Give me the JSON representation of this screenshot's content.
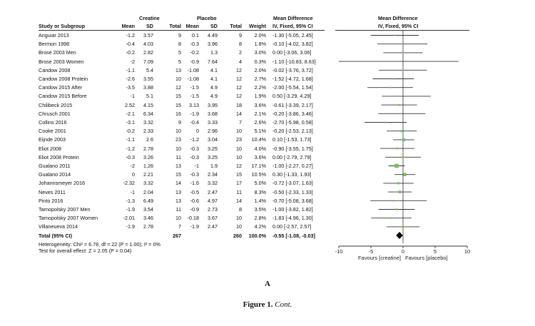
{
  "headers": {
    "group_creatine": "Creatine",
    "group_placebo": "Placebo",
    "group_md": "Mean Difference",
    "group_plot": "Mean Difference",
    "study": "Study or Subgroup",
    "mean": "Mean",
    "sd": "SD",
    "total": "Total",
    "weight": "Weight",
    "method": "IV, Fixed, 95% CI",
    "plot_method": "IV, Fixed, 95% CI"
  },
  "rows": [
    {
      "study": "Anguiar 2013",
      "c_mean": "-1.2",
      "c_sd": "3.57",
      "c_n": "9",
      "p_mean": "0.1",
      "p_sd": "4.49",
      "p_n": "9",
      "weight": "2.0%",
      "ci_text": "-1.30 [-5.05, 2.45]"
    },
    {
      "study": "Bermon 1998",
      "c_mean": "-0.4",
      "c_sd": "4.03",
      "c_n": "8",
      "p_mean": "-0.3",
      "p_sd": "3.96",
      "p_n": "8",
      "weight": "1.8%",
      "ci_text": "-0.10 [-4.02, 3.82]"
    },
    {
      "study": "Brose 2003 Men",
      "c_mean": "-0.2",
      "c_sd": "2.82",
      "c_n": "5",
      "p_mean": "-0.2",
      "p_sd": "1.3",
      "p_n": "2",
      "weight": "3.0%",
      "ci_text": "0.00 [-3.06, 3.06]"
    },
    {
      "study": "Brose 2003 Women",
      "c_mean": "-2",
      "c_sd": "7.09",
      "c_n": "5",
      "p_mean": "-0.9",
      "p_sd": "7.64",
      "p_n": "4",
      "weight": "0.3%",
      "ci_text": "-1.10 [-10.83, 8.63]"
    },
    {
      "study": "Candow 2008",
      "c_mean": "-1.1",
      "c_sd": "5.4",
      "c_n": "13",
      "p_mean": "-1.08",
      "p_sd": "4.1",
      "p_n": "12",
      "weight": "2.0%",
      "ci_text": "-0.02 [-3.76, 3.72]"
    },
    {
      "study": "Candow 2008 Protein",
      "c_mean": "-2.6",
      "c_sd": "3.55",
      "c_n": "10",
      "p_mean": "-1.08",
      "p_sd": "4.1",
      "p_n": "12",
      "weight": "2.7%",
      "ci_text": "-1.52 [-4.72, 1.68]"
    },
    {
      "study": "Candow 2015 After",
      "c_mean": "-3.5",
      "c_sd": "3.88",
      "c_n": "12",
      "p_mean": "-1.5",
      "p_sd": "4.9",
      "p_n": "12",
      "weight": "2.2%",
      "ci_text": "-2.00 [-5.54, 1.54]"
    },
    {
      "study": "Candow 2015 Before",
      "c_mean": "-1",
      "c_sd": "5.1",
      "c_n": "15",
      "p_mean": "-1.5",
      "p_sd": "4.9",
      "p_n": "12",
      "weight": "1.9%",
      "ci_text": "0.50 [-3.29, 4.29]"
    },
    {
      "study": "Chilibeck 2015",
      "c_mean": "2.52",
      "c_sd": "4.15",
      "c_n": "15",
      "p_mean": "3.13",
      "p_sd": "3.95",
      "p_n": "18",
      "weight": "3.6%",
      "ci_text": "-0.61 [-3.39, 2.17]"
    },
    {
      "study": "Chrusch 2001",
      "c_mean": "-2.1",
      "c_sd": "6.34",
      "c_n": "16",
      "p_mean": "-1.9",
      "p_sd": "3.68",
      "p_n": "14",
      "weight": "2.1%",
      "ci_text": "-0.20 [-3.86, 3.46]"
    },
    {
      "study": "Collins 2016",
      "c_mean": "-3.1",
      "c_sd": "3.32",
      "c_n": "9",
      "p_mean": "-0.4",
      "p_sd": "3.33",
      "p_n": "7",
      "weight": "2.6%",
      "ci_text": "-2.70 [-5.98, 0.58]"
    },
    {
      "study": "Cooke 2001",
      "c_mean": "-0.2",
      "c_sd": "2.33",
      "c_n": "10",
      "p_mean": "0",
      "p_sd": "2.96",
      "p_n": "10",
      "weight": "5.1%",
      "ci_text": "-0.20 [-2.53, 2.13]"
    },
    {
      "study": "Eijnde 2003",
      "c_mean": "-1.1",
      "c_sd": "2.6",
      "c_n": "23",
      "p_mean": "-1.2",
      "p_sd": "3.04",
      "p_n": "23",
      "weight": "10.4%",
      "ci_text": "0.10 [-1.53, 1.73]"
    },
    {
      "study": "Eliot 2008",
      "c_mean": "-1.2",
      "c_sd": "2.78",
      "c_n": "10",
      "p_mean": "-0.3",
      "p_sd": "3.25",
      "p_n": "10",
      "weight": "4.0%",
      "ci_text": "-0.90 [-3.55, 1.75]"
    },
    {
      "study": "Eliot 2008 Protein",
      "c_mean": "-0.3",
      "c_sd": "3.26",
      "c_n": "11",
      "p_mean": "-0.3",
      "p_sd": "3.25",
      "p_n": "10",
      "weight": "3.6%",
      "ci_text": "0.00 [-2.79, 2.79]"
    },
    {
      "study": "Gualano 2011",
      "c_mean": "-2",
      "c_sd": "1.26",
      "c_n": "13",
      "p_mean": "-1",
      "p_sd": "1.9",
      "p_n": "12",
      "weight": "17.1%",
      "ci_text": "-1.00 [-2.27, 0.27]"
    },
    {
      "study": "Gualano 2014",
      "c_mean": "0",
      "c_sd": "2.21",
      "c_n": "15",
      "p_mean": "-0.3",
      "p_sd": "2.34",
      "p_n": "15",
      "weight": "10.5%",
      "ci_text": "0.30 [-1.33, 1.93]"
    },
    {
      "study": "Johannsmeyer 2016",
      "c_mean": "-2.32",
      "c_sd": "3.32",
      "c_n": "14",
      "p_mean": "-1.6",
      "p_sd": "3.32",
      "p_n": "17",
      "weight": "5.0%",
      "ci_text": "-0.72 [-3.07, 1.63]"
    },
    {
      "study": "Neves 2011",
      "c_mean": "-1",
      "c_sd": "2.04",
      "c_n": "13",
      "p_mean": "-0.5",
      "p_sd": "2.47",
      "p_n": "11",
      "weight": "8.3%",
      "ci_text": "-0.50 [-2.33, 1.33]"
    },
    {
      "study": "Pinto 2016",
      "c_mean": "-1.3",
      "c_sd": "6.49",
      "c_n": "13",
      "p_mean": "-0.6",
      "p_sd": "4.97",
      "p_n": "14",
      "weight": "1.4%",
      "ci_text": "-0.70 [-5.08, 3.68]"
    },
    {
      "study": "Tarnopolsky 2007 Men",
      "c_mean": "-1.9",
      "c_sd": "3.54",
      "c_n": "11",
      "p_mean": "-0.9",
      "p_sd": "2.73",
      "p_n": "8",
      "weight": "3.5%",
      "ci_text": "-1.00 [-3.82, 1.82]"
    },
    {
      "study": "Tarnopolsky 2007 Women",
      "c_mean": "-2.01",
      "c_sd": "3.46",
      "c_n": "10",
      "p_mean": "-0.18",
      "p_sd": "3.67",
      "p_n": "10",
      "weight": "2.8%",
      "ci_text": "-1.83 [-4.96, 1.30]"
    },
    {
      "study": "Villaneueva 2014",
      "c_mean": "-1.9",
      "c_sd": "2.78",
      "c_n": "7",
      "p_mean": "-1.9",
      "p_sd": "2.47",
      "p_n": "10",
      "weight": "4.2%",
      "ci_text": "0.00 [-2.57, 2.57]"
    }
  ],
  "total": {
    "label": "Total (95% CI)",
    "c_n": "267",
    "p_n": "260",
    "weight": "100.0%",
    "ci_text": "-0.55 [-1.08, -0.03]"
  },
  "heterogeneity": "Heterogeneity: Chi² = 6.78, df = 22 (P = 1.00); I² = 0%",
  "overall_effect": "Test for overall effect: Z = 2.05 (P = 0.04)",
  "panel_label": "A",
  "figure_label": "Figure 1.",
  "figure_cont": "Cont.",
  "colors": {
    "marker": "#7bbf5a",
    "total_marker": "#000000",
    "line": "#333333"
  },
  "chart_data": {
    "type": "forest",
    "studies": [
      {
        "name": "Anguiar 2013",
        "md": -1.3,
        "lo": -5.05,
        "hi": 2.45,
        "weight": 2.0
      },
      {
        "name": "Bermon 1998",
        "md": -0.1,
        "lo": -4.02,
        "hi": 3.82,
        "weight": 1.8
      },
      {
        "name": "Brose 2003 Men",
        "md": 0.0,
        "lo": -3.06,
        "hi": 3.06,
        "weight": 3.0
      },
      {
        "name": "Brose 2003 Women",
        "md": -1.1,
        "lo": -10.83,
        "hi": 8.63,
        "weight": 0.3
      },
      {
        "name": "Candow 2008",
        "md": -0.02,
        "lo": -3.76,
        "hi": 3.72,
        "weight": 2.0
      },
      {
        "name": "Candow 2008 Protein",
        "md": -1.52,
        "lo": -4.72,
        "hi": 1.68,
        "weight": 2.7
      },
      {
        "name": "Candow 2015 After",
        "md": -2.0,
        "lo": -5.54,
        "hi": 1.54,
        "weight": 2.2
      },
      {
        "name": "Candow 2015 Before",
        "md": 0.5,
        "lo": -3.29,
        "hi": 4.29,
        "weight": 1.9
      },
      {
        "name": "Chilibeck 2015",
        "md": -0.61,
        "lo": -3.39,
        "hi": 2.17,
        "weight": 3.6
      },
      {
        "name": "Chrusch 2001",
        "md": -0.2,
        "lo": -3.86,
        "hi": 3.46,
        "weight": 2.1
      },
      {
        "name": "Collins 2016",
        "md": -2.7,
        "lo": -5.98,
        "hi": 0.58,
        "weight": 2.6
      },
      {
        "name": "Cooke 2001",
        "md": -0.2,
        "lo": -2.53,
        "hi": 2.13,
        "weight": 5.1
      },
      {
        "name": "Eijnde 2003",
        "md": 0.1,
        "lo": -1.53,
        "hi": 1.73,
        "weight": 10.4
      },
      {
        "name": "Eliot 2008",
        "md": -0.9,
        "lo": -3.55,
        "hi": 1.75,
        "weight": 4.0
      },
      {
        "name": "Eliot 2008 Protein",
        "md": 0.0,
        "lo": -2.79,
        "hi": 2.79,
        "weight": 3.6
      },
      {
        "name": "Gualano 2011",
        "md": -1.0,
        "lo": -2.27,
        "hi": 0.27,
        "weight": 17.1
      },
      {
        "name": "Gualano 2014",
        "md": 0.3,
        "lo": -1.33,
        "hi": 1.93,
        "weight": 10.5
      },
      {
        "name": "Johannsmeyer 2016",
        "md": -0.72,
        "lo": -3.07,
        "hi": 1.63,
        "weight": 5.0
      },
      {
        "name": "Neves 2011",
        "md": -0.5,
        "lo": -2.33,
        "hi": 1.33,
        "weight": 8.3
      },
      {
        "name": "Pinto 2016",
        "md": -0.7,
        "lo": -5.08,
        "hi": 3.68,
        "weight": 1.4
      },
      {
        "name": "Tarnopolsky 2007 Men",
        "md": -1.0,
        "lo": -3.82,
        "hi": 1.82,
        "weight": 3.5
      },
      {
        "name": "Tarnopolsky 2007 Women",
        "md": -1.83,
        "lo": -4.96,
        "hi": 1.3,
        "weight": 2.8
      },
      {
        "name": "Villaneueva 2014",
        "md": 0.0,
        "lo": -2.57,
        "hi": 2.57,
        "weight": 4.2
      }
    ],
    "pooled": {
      "md": -0.55,
      "lo": -1.08,
      "hi": -0.03
    },
    "xlim": [
      -10,
      10
    ],
    "xticks": [
      "-10",
      "-5",
      "0",
      "5",
      "10"
    ],
    "xtick_values": [
      -10,
      -5,
      0,
      5,
      10
    ],
    "xlabel_left": "Favours [creatine]",
    "xlabel_right": "Favours [placebo]"
  }
}
